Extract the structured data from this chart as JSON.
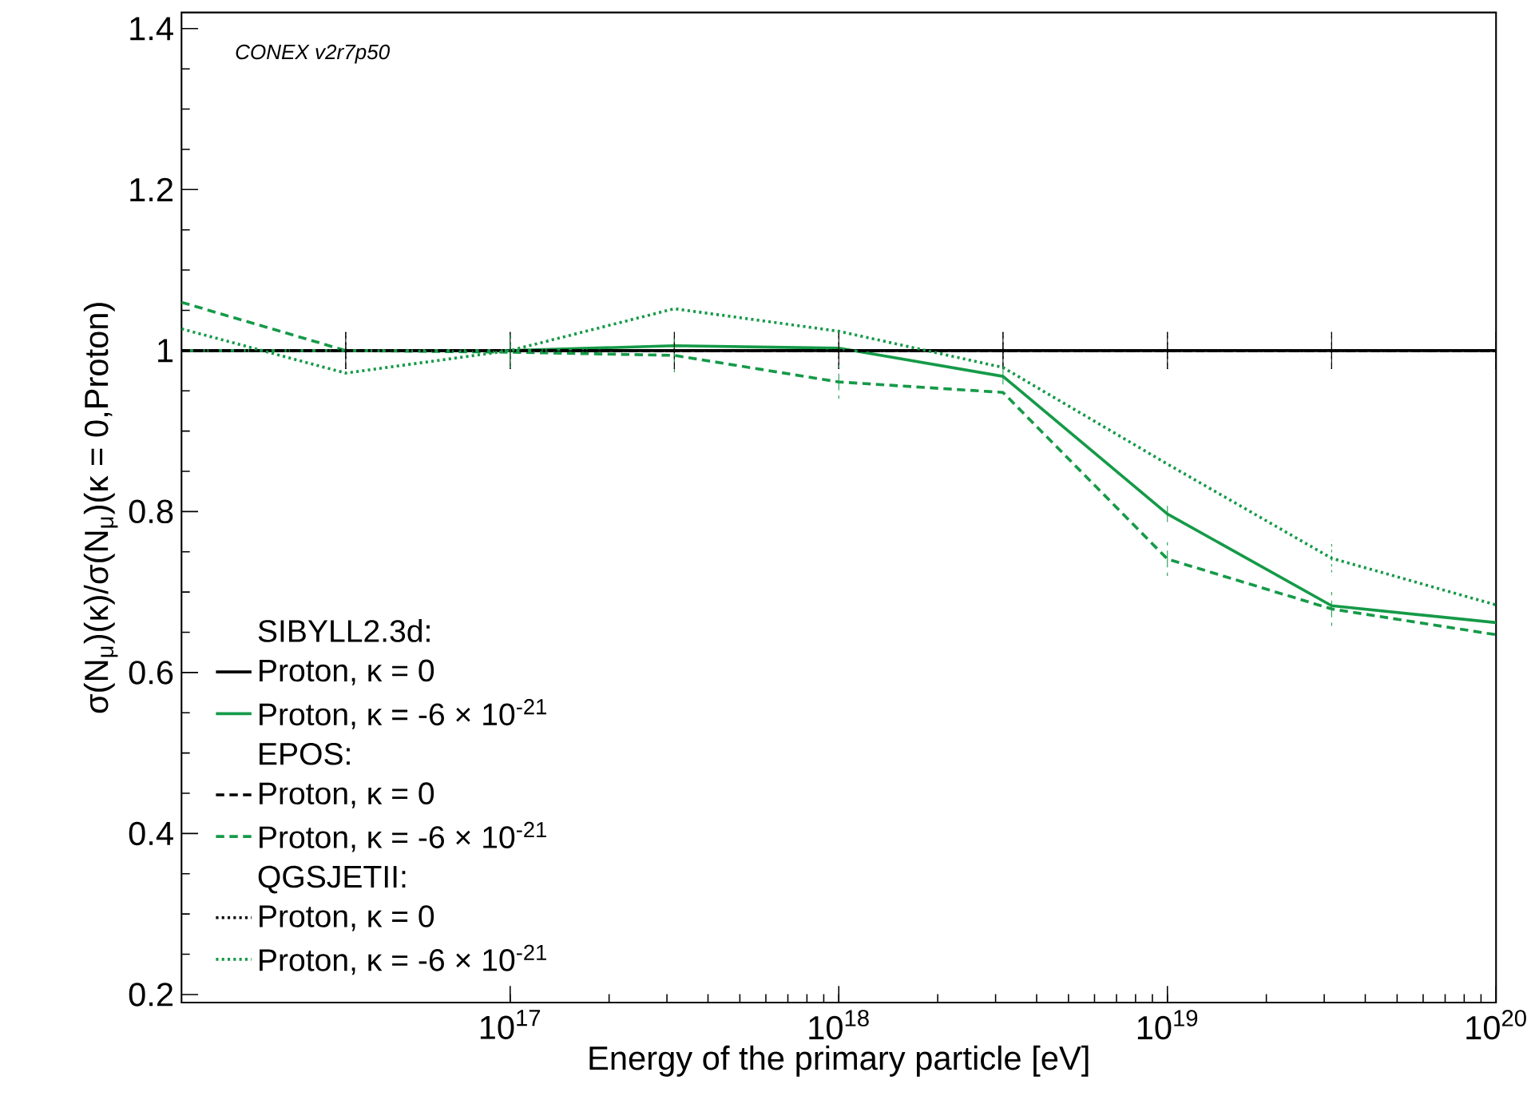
{
  "chart_data": {
    "type": "line",
    "xlabel": "Energy of the primary particle [eV]",
    "ylabel": "σ(N$_{μ}$)(κ)/σ(N$_{μ}$)(κ = 0,Proton)",
    "annotations": [
      "CONEX v2r7p50",
      "SIBYLL2.3d:",
      "EPOS:",
      "QGSJETII:"
    ],
    "x": [
      1e+16,
      3.16e+16,
      1e+17,
      3.16e+17,
      1e+18,
      3.16e+18,
      1e+19,
      3.16e+19,
      1e+20
    ],
    "log": "x",
    "xlim": [
      1e+16,
      1e+20
    ],
    "xticks": [
      {
        "value": 1e+17,
        "label": "10$^{17}$"
      },
      {
        "value": 1e+18,
        "label": "10$^{18}$"
      },
      {
        "value": 1e+19,
        "label": "10$^{19}$"
      },
      {
        "value": 1e+20,
        "label": "10$^{20}$"
      }
    ],
    "ylim": [
      0.19,
      1.42
    ],
    "yticks": [
      0.2,
      0.4,
      0.6,
      0.8,
      1,
      1.2,
      1.4
    ],
    "grid": false,
    "legend": "bottom left",
    "marker": "none",
    "series": [
      {
        "name": "Proton, κ = 0",
        "color": "#000000",
        "line_style": "solid",
        "values": [
          1,
          1,
          1,
          1,
          1,
          1,
          1,
          1,
          1
        ],
        "errors": [
          0.023,
          0.023,
          0.023,
          0.023,
          0.023,
          0.023,
          0.023,
          0.023,
          0.023
        ]
      },
      {
        "name": "Proton, κ = -6 × 10$^{-21}$",
        "color": "#159a48",
        "line_style": "solid",
        "values": [
          1,
          1,
          1,
          1.006,
          1.003,
          0.968,
          0.797,
          0.683,
          0.662
        ],
        "errors": [
          null,
          null,
          null,
          0.01,
          null,
          0.01,
          0.01,
          null,
          null
        ]
      },
      {
        "name": "Proton, κ = 0",
        "color": "#000000",
        "line_style": "dashed",
        "values": [
          1,
          1,
          1,
          1,
          1,
          1,
          1,
          1,
          1
        ],
        "errors": [
          0.023,
          0.023,
          0.023,
          0.023,
          0.023,
          0.023,
          0.023,
          0.023,
          0.023
        ]
      },
      {
        "name": "Proton, κ = -6 × 10$^{-21}$",
        "color": "#159a48",
        "line_style": "dashed",
        "values": [
          1.06,
          1,
          0.998,
          0.994,
          0.961,
          0.948,
          0.741,
          0.679,
          0.647
        ],
        "errors": [
          null,
          null,
          0.021,
          0.021,
          0.021,
          null,
          0.021,
          0.021,
          null
        ]
      },
      {
        "name": "Proton, κ = 0",
        "color": "#000000",
        "line_style": "dotted",
        "values": [
          1,
          1,
          1,
          1,
          1,
          1,
          1,
          1,
          1
        ],
        "errors": [
          0.023,
          0.023,
          0.023,
          0.023,
          0.023,
          0.023,
          0.023,
          0.023,
          0.023
        ]
      },
      {
        "name": "Proton, κ = -6 × 10$^{-21}$",
        "color": "#159a48",
        "line_style": "dotted",
        "values": [
          1.027,
          0.972,
          1,
          1.052,
          1.024,
          0.979,
          0.859,
          0.742,
          0.684
        ],
        "errors": [
          null,
          null,
          0.022,
          null,
          null,
          null,
          null,
          0.022,
          null
        ]
      }
    ]
  }
}
